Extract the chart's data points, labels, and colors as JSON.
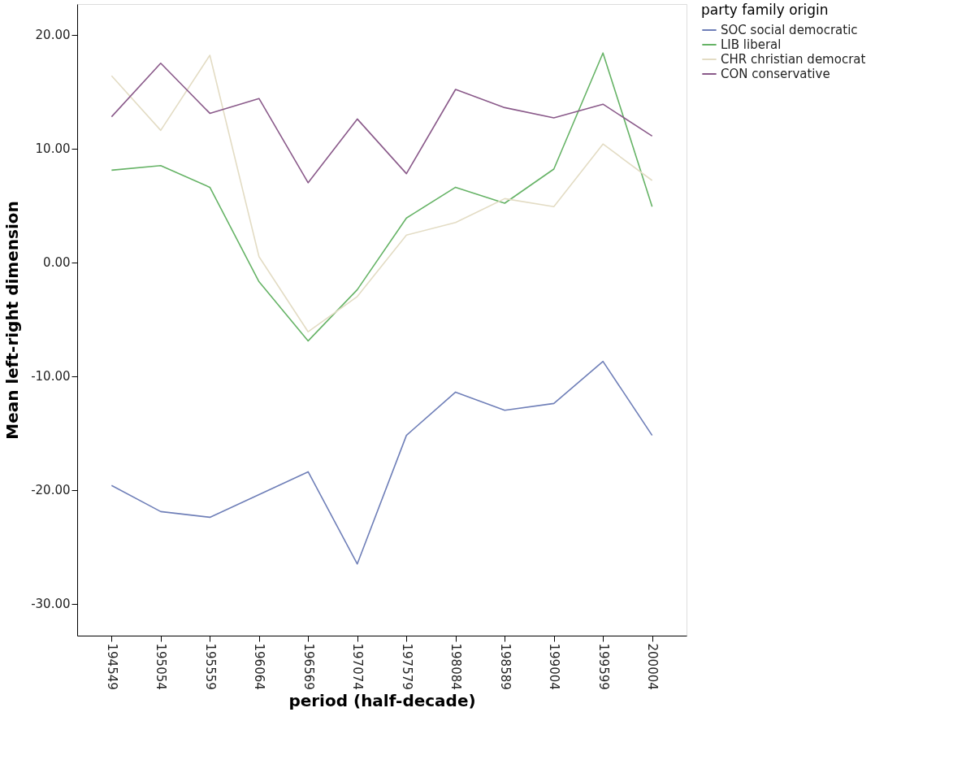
{
  "chart_data": {
    "type": "line",
    "xlabel": "period (half-decade)",
    "ylabel": "Mean left-right dimension",
    "legend_title": "party family origin",
    "categories": [
      "194549",
      "195054",
      "195559",
      "196064",
      "196569",
      "197074",
      "197579",
      "198084",
      "198589",
      "199004",
      "199599",
      "200004"
    ],
    "series": [
      {
        "name": "SOC social democratic",
        "color": "#6f7fb8",
        "values": [
          -19.6,
          -21.9,
          -22.4,
          -20.4,
          -18.4,
          -26.5,
          -15.2,
          -11.4,
          -13.0,
          -12.4,
          -8.7,
          -15.2
        ]
      },
      {
        "name": "LIB liberal",
        "color": "#66b366",
        "values": [
          8.1,
          8.5,
          6.6,
          -1.7,
          -6.9,
          -2.4,
          3.9,
          6.6,
          5.2,
          8.2,
          18.4,
          4.9
        ]
      },
      {
        "name": "CHR christian democrat",
        "color": "#e3dcc4",
        "values": [
          16.4,
          11.6,
          18.2,
          0.5,
          -6.1,
          -3.0,
          2.4,
          3.5,
          5.6,
          4.9,
          10.4,
          7.2
        ]
      },
      {
        "name": "CON conservative",
        "color": "#8a5a8a",
        "values": [
          12.8,
          17.5,
          13.1,
          14.4,
          7.0,
          12.6,
          7.8,
          15.2,
          13.6,
          12.7,
          13.9,
          11.1
        ]
      }
    ],
    "ylim": [
      -32.8,
      22.7
    ],
    "yticks": [
      {
        "value": -30,
        "label": "-30.00"
      },
      {
        "value": -20,
        "label": "-20.00"
      },
      {
        "value": -10,
        "label": "-10.00"
      },
      {
        "value": 0,
        "label": "0.00"
      },
      {
        "value": 10,
        "label": "10.00"
      },
      {
        "value": 20,
        "label": "20.00"
      }
    ],
    "grid": false,
    "legend": "top right",
    "marker": "none",
    "line_style": "solid"
  }
}
